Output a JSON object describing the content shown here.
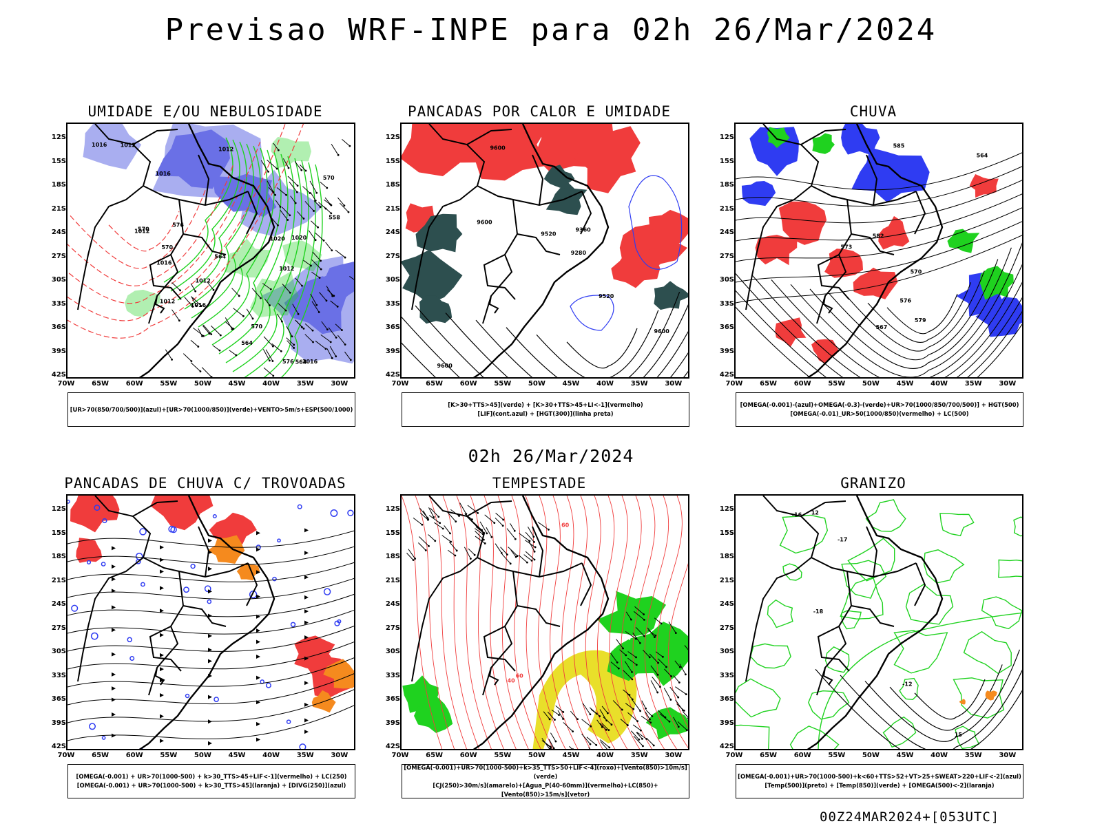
{
  "title": "Previsao WRF-INPE  para 02h 26/Mar/2024",
  "subtitle": "02h 26/Mar/2024",
  "footer": "00Z24MAR2024+[053UTC]",
  "axes": {
    "lat": [
      "12S",
      "15S",
      "18S",
      "21S",
      "24S",
      "27S",
      "30S",
      "33S",
      "36S",
      "39S",
      "42S"
    ],
    "lon": [
      "70W",
      "65W",
      "60W",
      "55W",
      "50W",
      "45W",
      "40W",
      "35W",
      "30W"
    ]
  },
  "colors": {
    "blue": "#2f3cf2",
    "light_blue": "#a9aef0",
    "mid_blue": "#6a70e6",
    "green": "#1fd21f",
    "red": "#f03c3c",
    "dark_teal": "#2d4f4f",
    "orange": "#f58a1e",
    "yellow": "#e9df2a",
    "black": "#000000"
  },
  "panels": [
    {
      "id": "umidade",
      "title": "UMIDADE E/OU NEBULOSIDADE",
      "legend": [
        "[UR>70(850/700/500)](azul)+[UR>70(1000/850)](verde)+VENTO>5m/s+ESP(500/1000)"
      ],
      "contour_labels": [
        "1012",
        "1012",
        "1012",
        "1012",
        "1016",
        "1016",
        "1016",
        "1016",
        "1012",
        "1020",
        "1020",
        "1012",
        "1016",
        "576",
        "570",
        "570",
        "564",
        "558",
        "570",
        "576",
        "564",
        "570",
        "564"
      ]
    },
    {
      "id": "pancadas-calor",
      "title": "PANCADAS POR CALOR E UMIDADE",
      "legend": [
        "[K>30+TTS>45](verde) + [K>30+TTS>45+LI<-1](vermelho)",
        "[LIF](cont.azul) + [HGT(300)](linha preta)"
      ],
      "contour_labels": [
        "9600",
        "9600",
        "9600",
        "9600",
        "9520",
        "9360",
        "9280",
        "9520"
      ]
    },
    {
      "id": "chuva",
      "title": "CHUVA",
      "legend": [
        "[OMEGA(-0.001)-(azul)+OMEGA(-0.3)-(verde)+UR>70(1000/850/700/500)] + HGT(500)",
        "[OMEGA(-0.01)_UR>50(1000/850)(vermelho) + LC(500)"
      ],
      "contour_labels": [
        "585",
        "582",
        "579",
        "576",
        "573",
        "570",
        "567",
        "564"
      ]
    },
    {
      "id": "pancadas-trovoadas",
      "title": "PANCADAS DE CHUVA C/ TROVOADAS",
      "legend": [
        "[OMEGA(-0.001) + UR>70(1000-500) + k>30_TTS>45+LIF<-1](vermelho) + LC(250)",
        "[OMEGA(-0.001) + UR>70(1000-500) + k>30_TTS>45](laranja) + [DIVG(250)](azul)"
      ],
      "contour_labels": []
    },
    {
      "id": "tempestade",
      "title": "TEMPESTADE",
      "legend": [
        "[OMEGA(-0.001)+UR>70(1000-500)+k>35_TTS>50+LIF<-4](roxo)+[Vento(850)>10m/s](verde)",
        "[CJ(250)>30m/s](amarelo)+[Agua_P(40-60mm)](vermelho)+LC(850)+[Vento(850)>15m/s](vetor)"
      ],
      "contour_labels": [
        "40",
        "60",
        "60"
      ]
    },
    {
      "id": "granizo",
      "title": "GRANIZO",
      "legend": [
        "[OMEGA(-0.001)+UR>70(1000-500)+k<60+TTS>52+VT>25+SWEAT>220+LIF<-2](azul)",
        "[Temp(500)](preto) + [Temp(850)](verde) + [OMEGA(500)<-2](laranja)"
      ],
      "contour_labels": [
        "-12",
        "-16",
        "-18",
        "-17",
        "12",
        "15"
      ]
    }
  ]
}
